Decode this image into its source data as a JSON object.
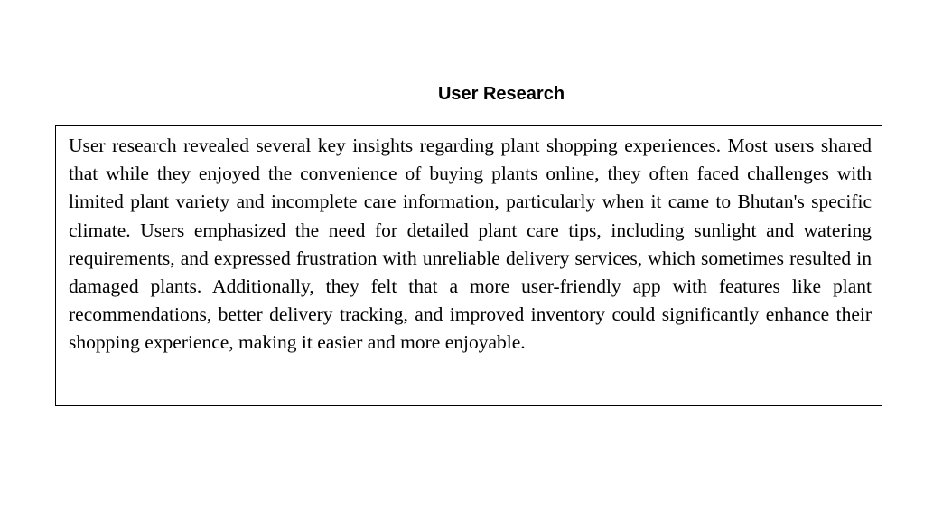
{
  "section": {
    "title": "User Research",
    "body": "User research revealed several key insights regarding plant shopping experiences. Most users shared that while they enjoyed the convenience of buying plants online, they often faced challenges with limited plant variety and incomplete care information, particularly when it came to Bhutan's specific climate. Users emphasized the need for detailed plant care tips, including sunlight and watering requirements, and expressed frustration with unreliable delivery services, which sometimes resulted in damaged plants. Additionally, they felt that a more user-friendly app with features like plant recommendations, better delivery tracking, and improved inventory could significantly enhance their shopping experience, making it easier and more enjoyable."
  }
}
